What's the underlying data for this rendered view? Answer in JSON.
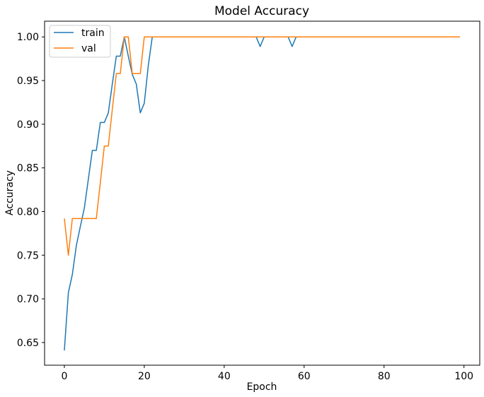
{
  "chart_data": {
    "type": "line",
    "title": "Model Accuracy",
    "xlabel": "Epoch",
    "ylabel": "Accuracy",
    "xlim": [
      -4.95,
      103.95
    ],
    "ylim": [
      0.624,
      1.018
    ],
    "xticks": [
      0,
      20,
      40,
      60,
      80,
      100
    ],
    "xtick_labels": [
      "0",
      "20",
      "40",
      "60",
      "80",
      "100"
    ],
    "yticks": [
      0.65,
      0.7,
      0.75,
      0.8,
      0.85,
      0.9,
      0.95,
      1.0
    ],
    "ytick_labels": [
      "0.65",
      "0.70",
      "0.75",
      "0.80",
      "0.85",
      "0.90",
      "0.95",
      "1.00"
    ],
    "grid": false,
    "legend_position": "top-left",
    "series": [
      {
        "name": "train",
        "color": "#1f77b4",
        "points": [
          [
            0,
            0.641
          ],
          [
            1,
            0.707
          ],
          [
            2,
            0.728
          ],
          [
            3,
            0.761
          ],
          [
            4,
            0.783
          ],
          [
            5,
            0.804
          ],
          [
            6,
            0.837
          ],
          [
            7,
            0.87
          ],
          [
            8,
            0.87
          ],
          [
            9,
            0.902
          ],
          [
            10,
            0.902
          ],
          [
            11,
            0.913
          ],
          [
            12,
            0.946
          ],
          [
            13,
            0.978
          ],
          [
            14,
            0.978
          ],
          [
            15,
            1.0
          ],
          [
            16,
            0.978
          ],
          [
            17,
            0.957
          ],
          [
            18,
            0.946
          ],
          [
            19,
            0.913
          ],
          [
            20,
            0.924
          ],
          [
            21,
            0.967
          ],
          [
            22,
            1.0
          ],
          [
            48,
            1.0
          ],
          [
            49,
            0.989
          ],
          [
            50,
            1.0
          ],
          [
            56,
            1.0
          ],
          [
            57,
            0.989
          ],
          [
            58,
            1.0
          ],
          [
            99,
            1.0
          ]
        ]
      },
      {
        "name": "val",
        "color": "#ff7f0e",
        "points": [
          [
            0,
            0.792
          ],
          [
            1,
            0.75
          ],
          [
            2,
            0.792
          ],
          [
            3,
            0.792
          ],
          [
            4,
            0.792
          ],
          [
            5,
            0.792
          ],
          [
            6,
            0.792
          ],
          [
            7,
            0.792
          ],
          [
            8,
            0.792
          ],
          [
            9,
            0.833
          ],
          [
            10,
            0.875
          ],
          [
            11,
            0.875
          ],
          [
            12,
            0.917
          ],
          [
            13,
            0.958
          ],
          [
            14,
            0.958
          ],
          [
            15,
            1.0
          ],
          [
            16,
            1.0
          ],
          [
            17,
            0.958
          ],
          [
            18,
            0.958
          ],
          [
            19,
            0.958
          ],
          [
            20,
            1.0
          ],
          [
            99,
            1.0
          ]
        ]
      }
    ]
  }
}
